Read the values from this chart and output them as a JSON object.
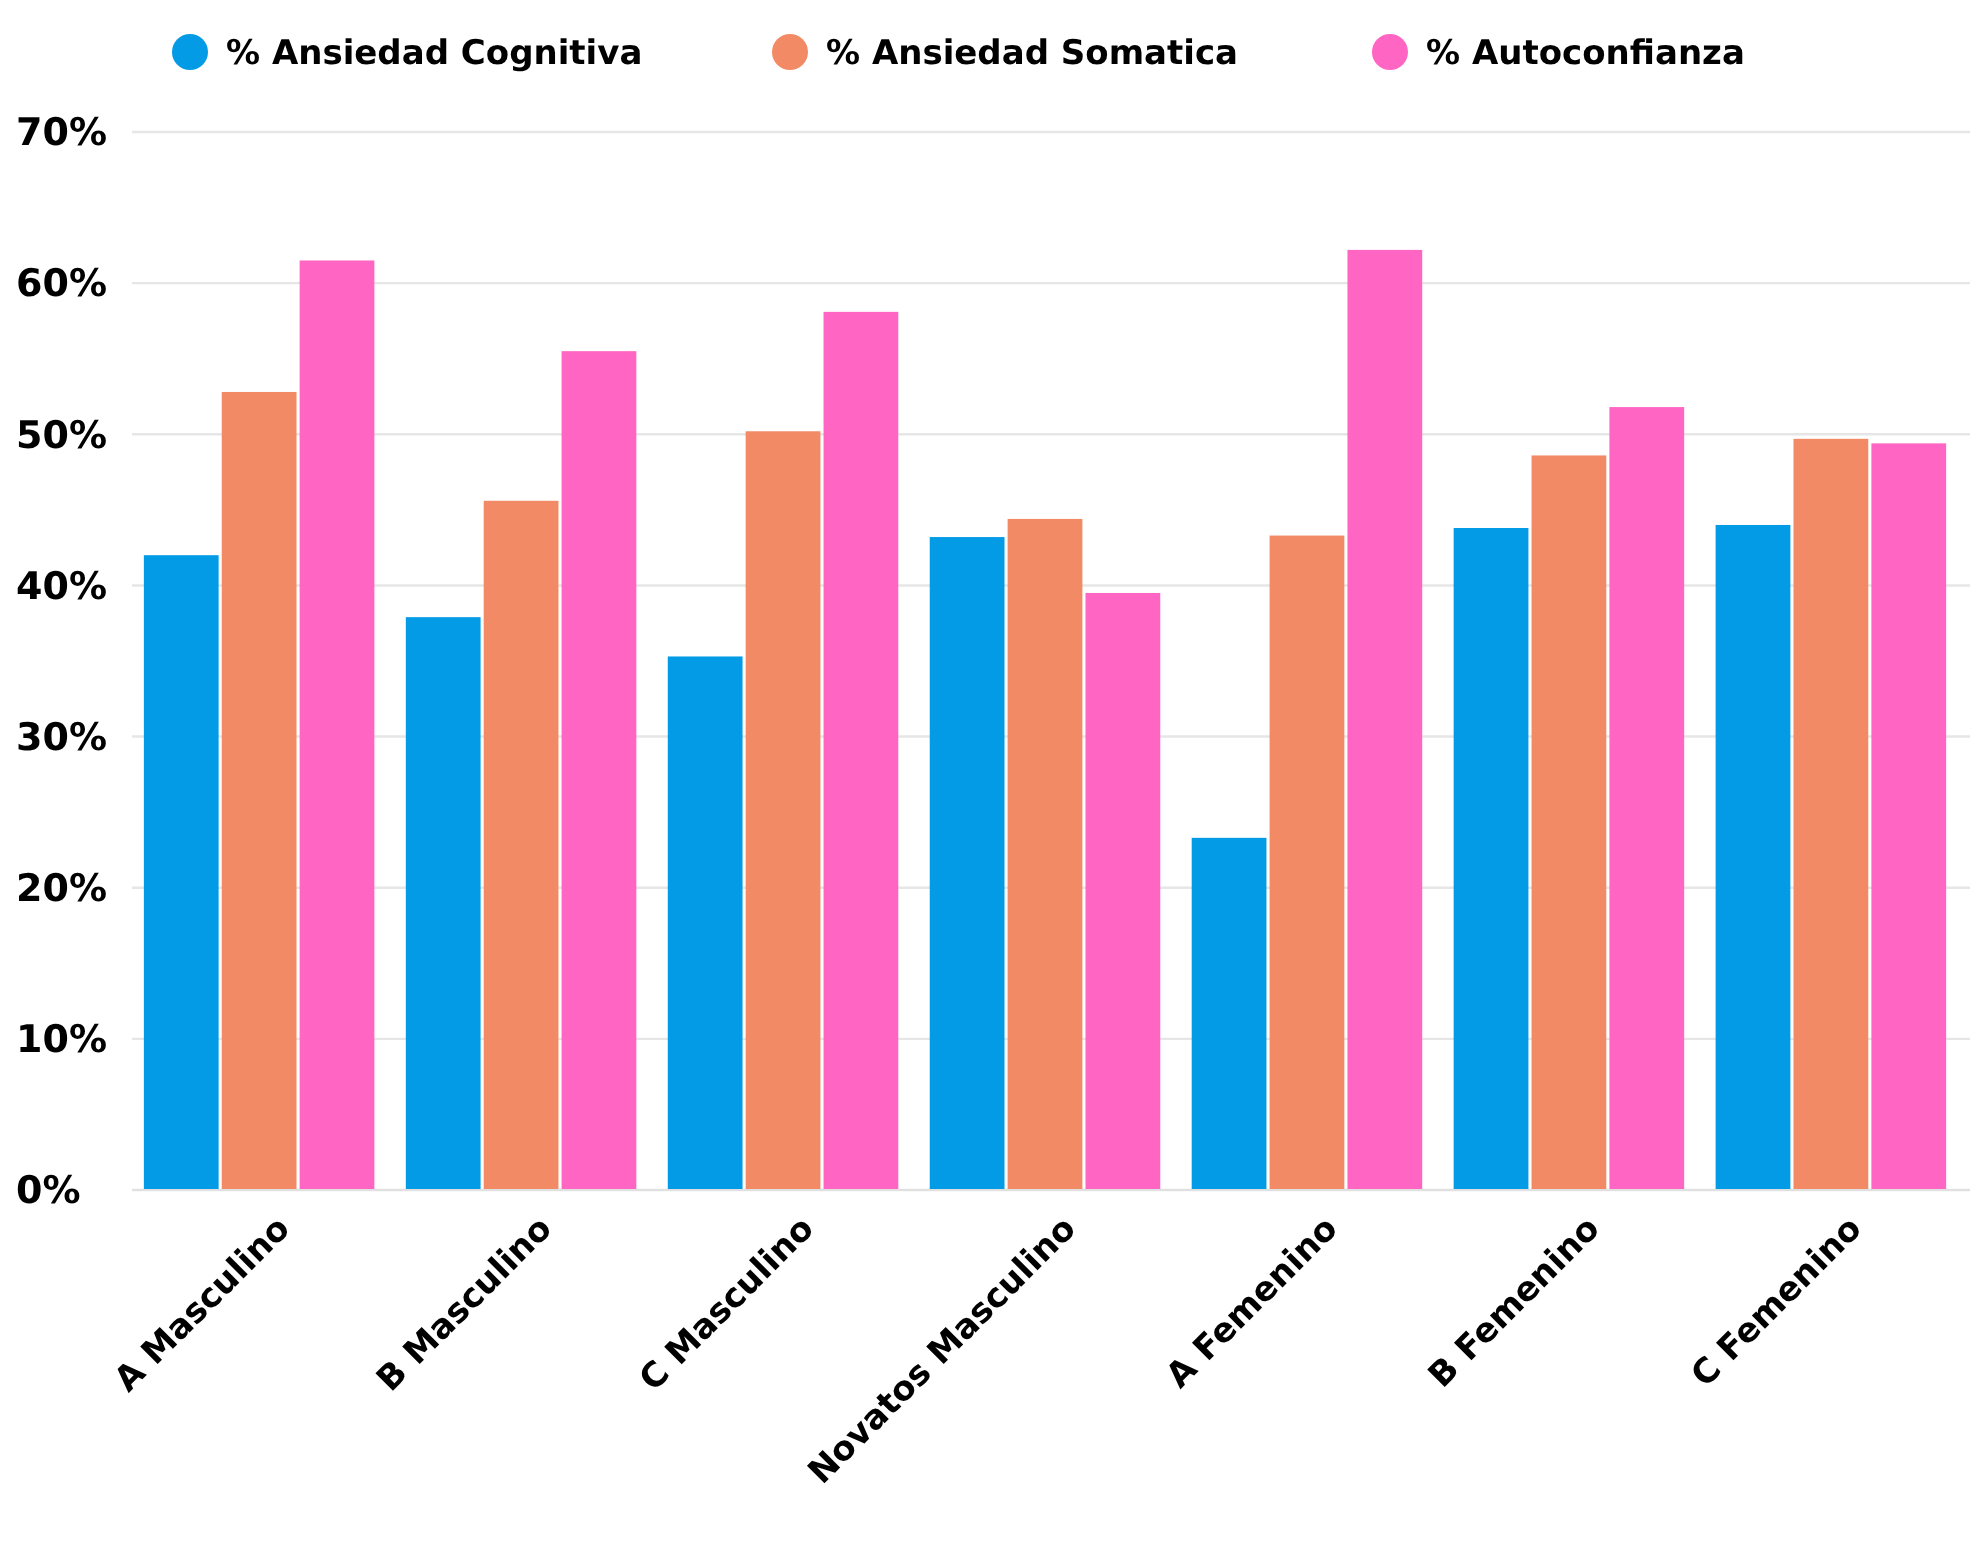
{
  "chart_data": {
    "type": "bar",
    "categories": [
      "A Masculino",
      "B Masculino",
      "C Masculino",
      "Novatos Masculino",
      "A Femenino",
      "B Femenino",
      "C Femenino"
    ],
    "series": [
      {
        "name": "% Ansiedad Cognitiva",
        "color": "#039be5",
        "values": [
          42.0,
          37.9,
          35.3,
          43.2,
          23.3,
          43.8,
          44.0
        ]
      },
      {
        "name": "% Ansiedad Somatica",
        "color": "#f28b65",
        "values": [
          52.8,
          45.6,
          50.2,
          44.4,
          43.3,
          48.6,
          49.7
        ]
      },
      {
        "name": "% Autoconfianza",
        "color": "#ff66c4",
        "values": [
          61.5,
          55.5,
          58.1,
          39.5,
          62.2,
          51.8,
          49.4
        ]
      }
    ],
    "ylim": [
      0,
      70
    ],
    "yticks": [
      {
        "value": 0,
        "label": "0%"
      },
      {
        "value": 10,
        "label": "10%"
      },
      {
        "value": 20,
        "label": "20%"
      },
      {
        "value": 30,
        "label": "30%"
      },
      {
        "value": 40,
        "label": "40%"
      },
      {
        "value": 50,
        "label": "50%"
      },
      {
        "value": 60,
        "label": "60%"
      },
      {
        "value": 70,
        "label": "70%"
      }
    ],
    "grid": "y",
    "legend": "top"
  }
}
